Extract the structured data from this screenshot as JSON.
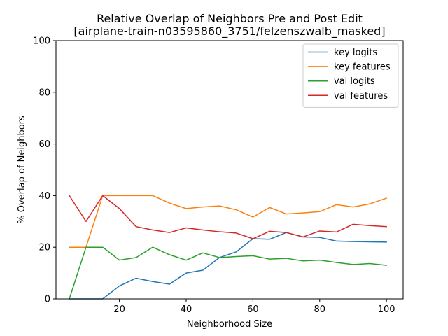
{
  "chart_data": {
    "type": "line",
    "title": "Relative Overlap of Neighbors Pre and Post Edit",
    "subtitle": "[airplane-train-n03595860_3751/felzenszwalb_masked]",
    "xlabel": "Neighborhood Size",
    "ylabel": "% Overlap of Neighbors",
    "xlim": [
      1,
      105
    ],
    "ylim": [
      0,
      100
    ],
    "xticks": [
      20,
      40,
      60,
      80,
      100
    ],
    "yticks": [
      0,
      20,
      40,
      60,
      80,
      100
    ],
    "grid": false,
    "legend_position": "top-right",
    "x": [
      5,
      10,
      15,
      20,
      25,
      30,
      35,
      40,
      45,
      50,
      55,
      60,
      65,
      70,
      75,
      80,
      85,
      90,
      95,
      100
    ],
    "series": [
      {
        "name": "key logits",
        "color": "#1f77b4",
        "values": [
          0,
          0,
          0,
          5,
          8,
          6.7,
          5.7,
          10,
          11.1,
          16,
          18.2,
          23.3,
          23.1,
          25.7,
          24,
          23.8,
          22.4,
          22.2,
          22.1,
          22
        ]
      },
      {
        "name": "key features",
        "color": "#ff7f0e",
        "values": [
          20,
          20,
          40,
          40,
          40,
          40,
          37.1,
          35,
          35.6,
          36,
          34.5,
          31.7,
          35.4,
          32.9,
          33.3,
          33.8,
          36.5,
          35.6,
          36.8,
          39
        ]
      },
      {
        "name": "val logits",
        "color": "#2ca02c",
        "values": [
          0,
          20,
          20,
          15,
          16,
          20,
          17.1,
          15,
          17.8,
          16,
          16.4,
          16.7,
          15.4,
          15.7,
          14.7,
          15,
          14.1,
          13.3,
          13.7,
          13
        ]
      },
      {
        "name": "val features",
        "color": "#d62728",
        "values": [
          40,
          30,
          40,
          35,
          28,
          26.7,
          25.7,
          27.5,
          26.7,
          26,
          25.5,
          23.3,
          26.2,
          25.7,
          24,
          26.3,
          25.9,
          28.9,
          28.4,
          28
        ]
      }
    ]
  }
}
